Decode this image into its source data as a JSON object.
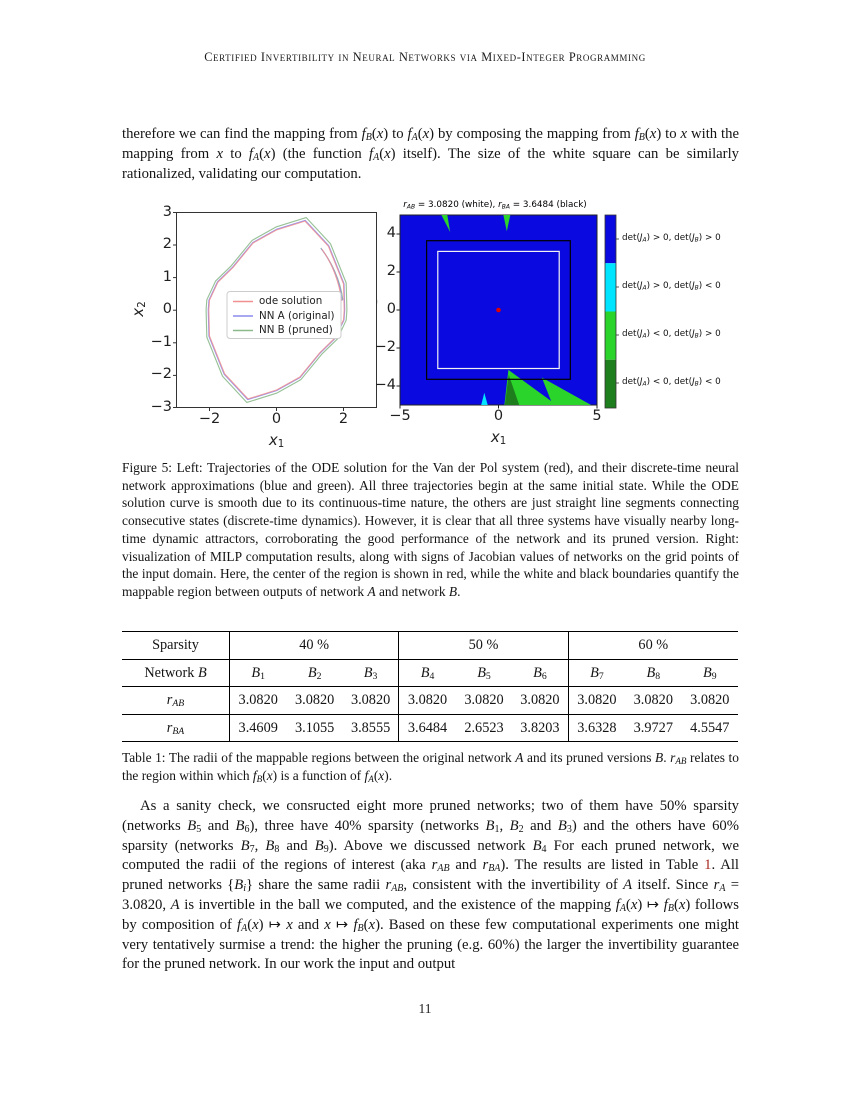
{
  "header": {
    "running_title": "Certified Invertibility in Neural Networks via Mixed-Integer Programming"
  },
  "page": {
    "number": "11"
  },
  "paragraph1": {
    "html": "therefore we can find the mapping from <i>f<sub>B</sub></i>(<i>x</i>) to <i>f<sub>A</sub></i>(<i>x</i>) by composing the mapping from <i>f<sub>B</sub></i>(<i>x</i>) to <i>x</i> with the mapping from <i>x</i> to <i>f<sub>A</sub></i>(<i>x</i>) (the function <i>f<sub>A</sub></i>(<i>x</i>) itself). The size of the white square can be similarly rationalized, validating our computation."
  },
  "figure5": {
    "caption_html": "Figure 5: Left: Trajectories of the ODE solution for the Van der Pol system (red), and their discrete-time neural network approximations (blue and green). All three trajectories begin at the same initial state. While the ODE solution curve is smooth due to its continuous-time nature, the others are just straight line segments connecting consecutive states (discrete-time dynamics). However, it is clear that all three systems have visually nearby long-time dynamic attractors, corroborating the good performance of the network and its pruned version. Right: visualization of MILP computation results, along with signs of Jacobian values of networks on the grid points of the input domain. Here, the center of the region is shown in red, while the white and black boundaries quantify the mappable region between outputs of network <i>A</i> and network <i>B</i>.",
    "left_plot": {
      "yticks": [
        "3",
        "2",
        "1",
        "0",
        "−1",
        "−2",
        "−3"
      ],
      "xticks": [
        "−2",
        "0",
        "2"
      ],
      "ylabel_html": "<i>x</i><sub>2</sub>",
      "xlabel_html": "<i>x</i><sub>1</sub>",
      "legend": [
        "ode solution",
        "NN A (original)",
        "NN B (pruned)"
      ]
    },
    "right_plot": {
      "title_html": "<i>r<sub>AB</sub></i> = 3.0820 (white), <i>r<sub>BA</sub></i> = 3.6484 (black)",
      "yticks": [
        "4",
        "2",
        "0",
        "−2",
        "−4"
      ],
      "xticks": [
        "−5",
        "0",
        "5"
      ],
      "xlabel_html": "<i>x</i><sub>1</sub>",
      "ylabel_clipped": "'",
      "colorbar_labels": [
        "det(<i>J<sub>A</sub></i>) &gt; 0, det(<i>J<sub>B</sub></i>) &gt; 0",
        "det(<i>J<sub>A</sub></i>) &gt; 0, det(<i>J<sub>B</sub></i>) &lt; 0",
        "det(<i>J<sub>A</sub></i>) &lt; 0, det(<i>J<sub>B</sub></i>) &gt; 0",
        "det(<i>J<sub>A</sub></i>) &lt; 0, det(<i>J<sub>B</sub></i>) &lt; 0"
      ]
    }
  },
  "table1": {
    "caption_html": "Table 1: The radii of the mappable regions between the original network <i>A</i> and its pruned versions <i>B</i>. <i>r<sub>AB</sub></i> relates to the region within which <i>f<sub>B</sub></i>(<i>x</i>) is a function of <i>f<sub>A</sub></i>(<i>x</i>).",
    "row_sparsity": {
      "label": "Sparsity",
      "groups": [
        "40 %",
        "50 %",
        "60 %"
      ]
    },
    "row_network": {
      "label_html": "Network <i>B</i>",
      "cells_html": [
        "<i>B</i><sub>1</sub>",
        "<i>B</i><sub>2</sub>",
        "<i>B</i><sub>3</sub>",
        "<i>B</i><sub>4</sub>",
        "<i>B</i><sub>5</sub>",
        "<i>B</i><sub>6</sub>",
        "<i>B</i><sub>7</sub>",
        "<i>B</i><sub>8</sub>",
        "<i>B</i><sub>9</sub>"
      ]
    },
    "row_rab": {
      "label_html": "<i>r<sub>AB</sub></i>",
      "values": [
        "3.0820",
        "3.0820",
        "3.0820",
        "3.0820",
        "3.0820",
        "3.0820",
        "3.0820",
        "3.0820",
        "3.0820"
      ]
    },
    "row_rba": {
      "label_html": "<i>r<sub>BA</sub></i>",
      "values": [
        "3.4609",
        "3.1055",
        "3.8555",
        "3.6484",
        "2.6523",
        "3.8203",
        "3.6328",
        "3.9727",
        "4.5547"
      ]
    }
  },
  "paragraph2": {
    "part1_html": "As a sanity check, we consructed eight more pruned networks; two of them have 50% sparsity (networks <i>B</i><sub>5</sub> and <i>B</i><sub>6</sub>), three have 40% sparsity (networks <i>B</i><sub>1</sub>, <i>B</i><sub>2</sub> and <i>B</i><sub>3</sub>) and the others have 60% sparsity (networks <i>B</i><sub>7</sub>, <i>B</i><sub>8</sub> and <i>B</i><sub>9</sub>). Above we discussed network <i>B</i><sub>4</sub> For each pruned network, we computed the radii of the regions of interest (aka <i>r<sub>AB</sub></i> and <i>r<sub>BA</sub></i>). The results are listed in Table ",
    "link_text": "1",
    "part2_html": ". All pruned networks {<i>B<sub>i</sub></i>} share the same radii <i>r<sub>AB</sub></i>, consistent with the invertibility of <i>A</i> itself. Since <i>r<sub>A</sub></i> = 3.0820, <i>A</i> is invertible in the ball we computed, and the existence of the mapping <i>f<sub>A</sub></i>(<i>x</i>) ↦ <i>f<sub>B</sub></i>(<i>x</i>) follows by composition of <i>f<sub>A</sub></i>(<i>x</i>) ↦ <i>x</i> and <i>x</i> ↦ <i>f<sub>B</sub></i>(<i>x</i>). Based on these few computational experiments one might very tentatively surmise a trend: the higher the pruning (e.g. 60%) the larger the invertibility guarantee for the pruned network. In our work the input and output"
  },
  "colors": {
    "jacobian_blue": "#0a0ae0",
    "jacobian_cyan": "#00e5ff",
    "jacobian_green": "#2bd42b",
    "jacobian_dark_green": "#1e7e1e",
    "center_dot_red": "#e00000",
    "ode_solution_red": "#f09090",
    "nn_a_blue": "#8a8aee",
    "nn_b_green": "#8cba8c",
    "ref_link": "#a82a22"
  },
  "chart_data": [
    {
      "type": "line",
      "title": "",
      "xlabel": "x1",
      "ylabel": "x2",
      "xlim": [
        -3,
        3
      ],
      "ylim": [
        -3,
        3
      ],
      "xticks": [
        -2,
        0,
        2
      ],
      "yticks": [
        -3,
        -2,
        -1,
        0,
        1,
        2,
        3
      ],
      "legend_position": "center",
      "series": [
        {
          "name": "ode solution",
          "color": "#f09090",
          "description": "Van der Pol limit cycle; closed orbit with x1 extremes ≈ ±2.0 and x2 extremes ≈ ±2.7, smooth continuous curve"
        },
        {
          "name": "NN A (original)",
          "color": "#8a8aee",
          "description": "discrete-time NN approximation, nearly coincides with ODE limit cycle"
        },
        {
          "name": "NN B (pruned)",
          "color": "#8cba8c",
          "description": "pruned NN approximation, slightly larger orbit (x2 peak ≈ 2.8)"
        }
      ],
      "annotations": [
        "all trajectories start at same initial state ≈ (1.3, 1.9)"
      ]
    },
    {
      "type": "heatmap",
      "title": "r_AB = 3.0820 (white), r_BA = 3.6484 (black)",
      "xlabel": "x1",
      "xlim": [
        -5,
        5
      ],
      "ylim": [
        -5,
        5
      ],
      "xticks": [
        -5,
        0,
        5
      ],
      "yticks": [
        -4,
        -2,
        0,
        2,
        4
      ],
      "legend_position": "right colorbar",
      "categories": [
        {
          "label": "det(J_A) > 0, det(J_B) > 0",
          "color": "#0a0ae0",
          "coverage": "dominant background"
        },
        {
          "label": "det(J_A) > 0, det(J_B) < 0",
          "color": "#00e5ff",
          "coverage": "tiny sliver near (-0.7, -4.7)"
        },
        {
          "label": "det(J_A) < 0, det(J_B) > 0",
          "color": "#2bd42b",
          "coverage": "needles at top (x≈-2.8 and x≈0.4) and triangles at bottom (x≈0.3..3 and x≈2.2..4.7)"
        },
        {
          "label": "det(J_A) < 0, det(J_B) < 0",
          "color": "#1e7e1e",
          "coverage": "small triangle inside bottom green region near x≈0.3..1"
        }
      ],
      "annotations": {
        "white_square_half_side": 3.082,
        "black_square_half_side": 3.6484,
        "center_point": [
          0,
          0
        ],
        "center_point_color": "#e00000"
      }
    }
  ]
}
